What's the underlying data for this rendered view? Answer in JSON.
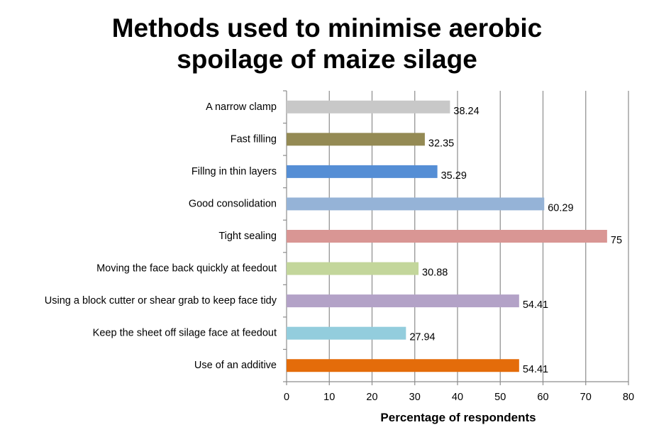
{
  "chart_data": {
    "type": "bar",
    "orientation": "horizontal",
    "title_lines": [
      "Methods used to minimise aerobic",
      "spoilage of maize silage"
    ],
    "xlabel": "Percentage of respondents",
    "ylabel": "",
    "xlim": [
      0,
      80
    ],
    "x_ticks": [
      "0",
      "10",
      "20",
      "30",
      "40",
      "50",
      "60",
      "70",
      "80"
    ],
    "grid": "vertical",
    "categories": [
      "A narrow clamp",
      "Fast filling",
      "Fillng in thin layers",
      "Good consolidation",
      "Tight sealing",
      "Moving the face back quickly at feedout",
      "Using a block cutter or shear grab to keep face tidy",
      "Keep the sheet off silage face at feedout",
      "Use of an additive"
    ],
    "values": [
      38.24,
      32.35,
      35.29,
      60.29,
      75,
      30.88,
      54.41,
      27.94,
      54.41
    ],
    "value_labels": [
      "38.24",
      "32.35",
      "35.29",
      "60.29",
      "75",
      "30.88",
      "54.41",
      "27.94",
      "54.41"
    ],
    "colors": [
      "#c8c8c8",
      "#948a54",
      "#558ed5",
      "#95b3d7",
      "#d99694",
      "#c3d69b",
      "#b3a2c7",
      "#93cddd",
      "#e46c0a"
    ]
  }
}
